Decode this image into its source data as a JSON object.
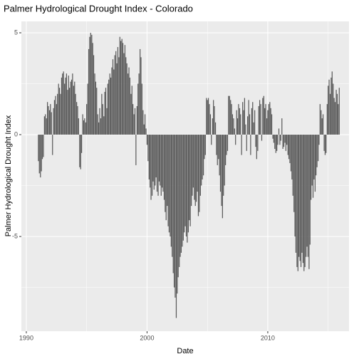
{
  "chart_data": {
    "type": "bar",
    "title": "Palmer Hydrological Drought Index - Colorado",
    "xlabel": "Date",
    "ylabel": "Palmer Hydrological Drought Index",
    "color": "#595959",
    "xlim": [
      1989.59,
      2016.73
    ],
    "ylim": [
      -9.65,
      5.56
    ],
    "xticks": [
      1990,
      2000,
      2010
    ],
    "yticks": [
      -5,
      0,
      5
    ],
    "grid": true,
    "x": [
      1991,
      1991.08,
      1991.17,
      1991.25,
      1991.33,
      1991.42,
      1991.5,
      1991.58,
      1991.67,
      1991.75,
      1991.83,
      1991.92,
      1992,
      1992.08,
      1992.17,
      1992.25,
      1992.33,
      1992.42,
      1992.5,
      1992.58,
      1992.67,
      1992.75,
      1992.83,
      1992.92,
      1993,
      1993.08,
      1993.17,
      1993.25,
      1993.33,
      1993.42,
      1993.5,
      1993.58,
      1993.67,
      1993.75,
      1993.83,
      1993.92,
      1994,
      1994.08,
      1994.17,
      1994.25,
      1994.33,
      1994.42,
      1994.5,
      1994.58,
      1994.67,
      1994.75,
      1994.83,
      1994.92,
      1995,
      1995.08,
      1995.17,
      1995.25,
      1995.33,
      1995.42,
      1995.5,
      1995.58,
      1995.67,
      1995.75,
      1995.83,
      1995.92,
      1996,
      1996.08,
      1996.17,
      1996.25,
      1996.33,
      1996.42,
      1996.5,
      1996.58,
      1996.67,
      1996.75,
      1996.83,
      1996.92,
      1997,
      1997.08,
      1997.17,
      1997.25,
      1997.33,
      1997.42,
      1997.5,
      1997.58,
      1997.67,
      1997.75,
      1997.83,
      1997.92,
      1998,
      1998.08,
      1998.17,
      1998.25,
      1998.33,
      1998.42,
      1998.5,
      1998.58,
      1998.67,
      1998.75,
      1998.83,
      1998.92,
      1999,
      1999.08,
      1999.17,
      1999.25,
      1999.33,
      1999.42,
      1999.5,
      1999.58,
      1999.67,
      1999.75,
      1999.83,
      1999.92,
      2000,
      2000.08,
      2000.17,
      2000.25,
      2000.33,
      2000.42,
      2000.5,
      2000.58,
      2000.67,
      2000.75,
      2000.83,
      2000.92,
      2001,
      2001.08,
      2001.17,
      2001.25,
      2001.33,
      2001.42,
      2001.5,
      2001.58,
      2001.67,
      2001.75,
      2001.83,
      2001.92,
      2002,
      2002.08,
      2002.17,
      2002.25,
      2002.33,
      2002.42,
      2002.5,
      2002.58,
      2002.67,
      2002.75,
      2002.83,
      2002.92,
      2003,
      2003.08,
      2003.17,
      2003.25,
      2003.33,
      2003.42,
      2003.5,
      2003.58,
      2003.67,
      2003.75,
      2003.83,
      2003.92,
      2004,
      2004.08,
      2004.17,
      2004.25,
      2004.33,
      2004.42,
      2004.5,
      2004.58,
      2004.67,
      2004.75,
      2004.83,
      2004.92,
      2005,
      2005.08,
      2005.17,
      2005.25,
      2005.33,
      2005.42,
      2005.5,
      2005.58,
      2005.67,
      2005.75,
      2005.83,
      2005.92,
      2006,
      2006.08,
      2006.17,
      2006.25,
      2006.33,
      2006.42,
      2006.5,
      2006.58,
      2006.67,
      2006.75,
      2006.83,
      2006.92,
      2007,
      2007.08,
      2007.17,
      2007.25,
      2007.33,
      2007.42,
      2007.5,
      2007.58,
      2007.67,
      2007.75,
      2007.83,
      2007.92,
      2008,
      2008.08,
      2008.17,
      2008.25,
      2008.33,
      2008.42,
      2008.5,
      2008.58,
      2008.67,
      2008.75,
      2008.83,
      2008.92,
      2009,
      2009.08,
      2009.17,
      2009.25,
      2009.33,
      2009.42,
      2009.5,
      2009.58,
      2009.67,
      2009.75,
      2009.83,
      2009.92,
      2010,
      2010.08,
      2010.17,
      2010.25,
      2010.33,
      2010.42,
      2010.5,
      2010.58,
      2010.67,
      2010.75,
      2010.83,
      2010.92,
      2011,
      2011.08,
      2011.17,
      2011.25,
      2011.33,
      2011.42,
      2011.5,
      2011.58,
      2011.67,
      2011.75,
      2011.83,
      2011.92,
      2012,
      2012.08,
      2012.17,
      2012.25,
      2012.33,
      2012.42,
      2012.5,
      2012.58,
      2012.67,
      2012.75,
      2012.83,
      2012.92,
      2013,
      2013.08,
      2013.17,
      2013.25,
      2013.33,
      2013.42,
      2013.5,
      2013.58,
      2013.67,
      2013.75,
      2013.83,
      2013.92,
      2014,
      2014.08,
      2014.17,
      2014.25,
      2014.33,
      2014.42,
      2014.5,
      2014.58,
      2014.67,
      2014.75,
      2014.83,
      2014.92,
      2015,
      2015.08,
      2015.17,
      2015.25,
      2015.33,
      2015.42,
      2015.5,
      2015.58,
      2015.67,
      2015.75,
      2015.83,
      2015.92
    ],
    "values": [
      -1.3,
      -1.9,
      -2.1,
      -1.8,
      -1.2,
      -1.1,
      0.9,
      1.0,
      0.8,
      1.6,
      1.4,
      1.2,
      1.5,
      1.1,
      -1.0,
      1.3,
      1.7,
      1.9,
      1.5,
      2.0,
      2.5,
      2.3,
      2.0,
      2.8,
      3.0,
      3.1,
      2.5,
      2.8,
      3.0,
      2.2,
      2.9,
      2.3,
      2.6,
      2.7,
      3.0,
      2.4,
      2.6,
      2.0,
      1.6,
      1.4,
      0.8,
      -1.6,
      -1.7,
      -0.9,
      1.0,
      0.7,
      0.8,
      0.6,
      1.5,
      2.5,
      4.2,
      4.8,
      5.0,
      4.9,
      4.5,
      3.9,
      3.0,
      2.6,
      2.3,
      1.0,
      0.6,
      1.3,
      0.8,
      2.0,
      1.5,
      0.9,
      2.1,
      2.3,
      1.3,
      2.5,
      2.7,
      3.0,
      2.8,
      3.3,
      3.7,
      3.2,
      3.9,
      4.1,
      3.5,
      4.3,
      3.8,
      4.8,
      4.6,
      4.7,
      4.5,
      4.0,
      4.4,
      3.8,
      3.5,
      3.0,
      3.3,
      2.8,
      2.0,
      2.4,
      1.5,
      1.0,
      1.3,
      -1.5,
      1.4,
      2.5,
      3.0,
      4.2,
      3.8,
      2.5,
      1.2,
      0.5,
      1.0,
      0.3,
      -0.5,
      -1.3,
      -2.2,
      -2.6,
      -3.2,
      -3.0,
      -2.3,
      -2.7,
      -2.5,
      -2.1,
      -2.8,
      -3.0,
      -2.3,
      -2.5,
      -3.0,
      -2.6,
      -2.8,
      -3.2,
      -3.8,
      -4.2,
      -3.5,
      -4.5,
      -4.8,
      -5.0,
      -5.5,
      -6.0,
      -6.8,
      -7.5,
      -8.0,
      -9.0,
      -7.8,
      -7.0,
      -6.5,
      -6.0,
      -5.8,
      -5.5,
      -5.2,
      -4.8,
      -4.5,
      -5.0,
      -5.3,
      -4.8,
      -4.2,
      -4.5,
      -3.5,
      -3.0,
      -2.6,
      -3.2,
      -3.5,
      -3.3,
      -2.8,
      -4.0,
      -3.8,
      -3.0,
      -2.5,
      -2.2,
      -2.0,
      -1.2,
      -1.0,
      1.8,
      1.7,
      1.8,
      1.5,
      1.0,
      -0.5,
      0.8,
      1.7,
      1.4,
      0.6,
      -1.0,
      -1.5,
      -1.2,
      -2.0,
      -2.8,
      -3.5,
      -4.1,
      -3.0,
      -2.5,
      -1.5,
      -1.0,
      -0.8,
      1.9,
      1.9,
      1.7,
      1.5,
      1.0,
      0.8,
      0.3,
      -0.5,
      1.2,
      0.8,
      1.5,
      1.3,
      1.0,
      -1.0,
      1.6,
      1.2,
      1.8,
      0.5,
      -0.8,
      0.9,
      1.7,
      1.0,
      -1.0,
      1.3,
      1.6,
      0.6,
      1.2,
      -0.6,
      -1.2,
      -0.8,
      1.4,
      1.7,
      1.5,
      -0.3,
      1.8,
      1.9,
      1.3,
      1.5,
      0.8,
      1.2,
      1.5,
      1.6,
      1.3,
      1.0,
      -0.2,
      -0.4,
      -0.7,
      -0.9,
      -0.8,
      -0.5,
      0.3,
      -0.5,
      -0.3,
      0.8,
      -0.7,
      -0.6,
      -0.4,
      -0.8,
      -0.5,
      -1.0,
      -1.2,
      -1.4,
      -1.8,
      -2.2,
      -3.0,
      -3.8,
      -5.0,
      -5.8,
      -6.5,
      -6.7,
      -6.0,
      -6.2,
      -6.5,
      -5.8,
      -6.3,
      -6.7,
      -6.5,
      -6.0,
      -5.5,
      -6.0,
      -6.6,
      -5.4,
      -3.2,
      -2.5,
      -3.1,
      -2.2,
      -2.8,
      -2.0,
      -1.6,
      -1.3,
      -0.5,
      1.5,
      1.2,
      0.8,
      1.0,
      -0.8,
      -1.0,
      -0.9,
      1.5,
      2.4,
      2.7,
      2.0,
      2.8,
      3.1,
      2.5,
      1.8,
      1.6,
      2.2,
      2.0,
      1.5,
      2.3
    ]
  }
}
